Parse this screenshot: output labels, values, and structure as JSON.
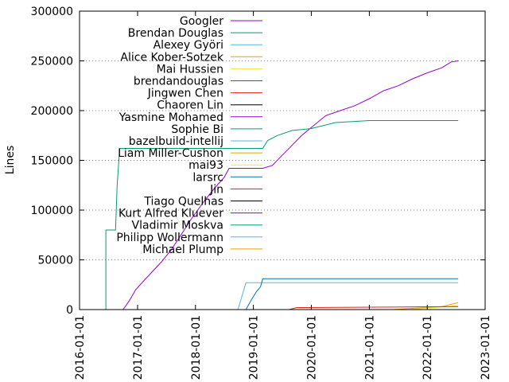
{
  "chart_data": {
    "type": "line",
    "title": "",
    "xlabel": "",
    "ylabel": "Lines",
    "x_axis": {
      "type": "date",
      "range": [
        "2016-01-01",
        "2023-01-01"
      ],
      "ticks": [
        "2016-01-01",
        "2017-01-01",
        "2018-01-01",
        "2019-01-01",
        "2020-01-01",
        "2021-01-01",
        "2022-01-01",
        "2023-01-01"
      ]
    },
    "y_axis": {
      "range": [
        0,
        300000
      ],
      "ticks": [
        0,
        50000,
        100000,
        150000,
        200000,
        250000,
        300000
      ],
      "tick_labels": [
        "0",
        "50000",
        "100000",
        "150000",
        "200000",
        "250000",
        "300000"
      ],
      "grid": true
    },
    "legend_position": "top-left",
    "series": [
      {
        "name": "Googler",
        "color": "#9400d3",
        "points": [
          [
            "2016-10-01",
            0
          ],
          [
            "2016-10-20",
            4000
          ],
          [
            "2016-11-10",
            9000
          ],
          [
            "2016-11-25",
            13000
          ],
          [
            "2016-12-20",
            20000
          ],
          [
            "2017-02-15",
            30000
          ],
          [
            "2017-04-15",
            40000
          ],
          [
            "2017-06-01",
            48000
          ],
          [
            "2017-08-01",
            60000
          ],
          [
            "2017-10-01",
            75000
          ],
          [
            "2017-12-01",
            90000
          ],
          [
            "2018-01-15",
            100000
          ],
          [
            "2018-03-01",
            110000
          ],
          [
            "2018-05-01",
            122000
          ],
          [
            "2018-07-01",
            133000
          ],
          [
            "2018-08-01",
            142000
          ],
          [
            "2019-01-01",
            142000
          ],
          [
            "2019-03-01",
            142000
          ],
          [
            "2019-05-01",
            145000
          ],
          [
            "2019-07-01",
            155000
          ],
          [
            "2019-09-01",
            165000
          ],
          [
            "2019-11-01",
            175000
          ],
          [
            "2020-01-01",
            183000
          ],
          [
            "2020-04-01",
            195000
          ],
          [
            "2020-07-01",
            200000
          ],
          [
            "2020-10-01",
            205000
          ],
          [
            "2021-01-01",
            212000
          ],
          [
            "2021-04-01",
            220000
          ],
          [
            "2021-07-01",
            225000
          ],
          [
            "2021-10-01",
            232000
          ],
          [
            "2022-01-01",
            238000
          ],
          [
            "2022-04-01",
            243000
          ],
          [
            "2022-06-01",
            249000
          ],
          [
            "2022-07-15",
            250000
          ]
        ]
      },
      {
        "name": "Brendan Douglas",
        "color": "#009e73",
        "points": [
          [
            "2016-06-15",
            0
          ],
          [
            "2016-06-15",
            80000
          ],
          [
            "2016-08-15",
            80000
          ],
          [
            "2016-08-25",
            125000
          ],
          [
            "2016-09-10",
            162000
          ],
          [
            "2017-06-01",
            162000
          ],
          [
            "2018-06-01",
            162000
          ],
          [
            "2019-03-01",
            162000
          ],
          [
            "2019-04-01",
            170000
          ],
          [
            "2019-06-01",
            175000
          ],
          [
            "2019-09-01",
            180000
          ],
          [
            "2020-01-01",
            182000
          ],
          [
            "2020-06-01",
            188000
          ],
          [
            "2021-01-01",
            190000
          ],
          [
            "2022-07-15",
            190000
          ]
        ]
      },
      {
        "name": "Alexey Györi",
        "color": "#56b4e9",
        "points": [
          [
            "2018-09-25",
            0
          ],
          [
            "2018-10-20",
            13000
          ],
          [
            "2018-11-15",
            27000
          ],
          [
            "2022-07-15",
            27000
          ]
        ]
      },
      {
        "name": "Alice Kober-Sotzek",
        "color": "#e69f00",
        "points": [
          [
            "2021-06-01",
            0
          ],
          [
            "2021-09-01",
            1000
          ],
          [
            "2022-01-01",
            2000
          ],
          [
            "2022-04-01",
            3000
          ],
          [
            "2022-07-15",
            7000
          ]
        ]
      },
      {
        "name": "Mai Hussien",
        "color": "#f0e442",
        "points": [
          [
            "2021-09-01",
            0
          ],
          [
            "2022-01-01",
            1500
          ],
          [
            "2022-07-15",
            4000
          ]
        ]
      },
      {
        "name": "brendandouglas",
        "color": "#0072b2",
        "points": [
          [
            "2018-11-15",
            0
          ],
          [
            "2018-12-20",
            10000
          ],
          [
            "2019-01-20",
            18000
          ],
          [
            "2019-02-15",
            23000
          ],
          [
            "2019-03-01",
            31000
          ],
          [
            "2022-07-15",
            31000
          ]
        ]
      },
      {
        "name": "Jingwen Chen",
        "color": "#e51e10",
        "points": [
          [
            "2019-08-15",
            0
          ],
          [
            "2019-10-01",
            2000
          ],
          [
            "2022-07-15",
            3000
          ]
        ]
      },
      {
        "name": "Chaoren Lin",
        "color": "#000000",
        "points": []
      },
      {
        "name": "Yasmine Mohamed",
        "color": "#9400d3",
        "points": []
      },
      {
        "name": "Sophie Bi",
        "color": "#009e73",
        "points": []
      },
      {
        "name": "bazelbuild-intellij",
        "color": "#56b4e9",
        "points": []
      },
      {
        "name": "Liam Miller-Cushon",
        "color": "#e69f00",
        "points": []
      },
      {
        "name": "mai93",
        "color": "#f0e442",
        "points": []
      },
      {
        "name": "larsrc",
        "color": "#0072b2",
        "points": []
      },
      {
        "name": "Jin",
        "color": "#e51e10",
        "points": []
      },
      {
        "name": "Tiago Quelhas",
        "color": "#000000",
        "points": []
      },
      {
        "name": "Kurt Alfred Kluever",
        "color": "#9400d3",
        "points": []
      },
      {
        "name": "Vladimir Moskva",
        "color": "#009e73",
        "points": []
      },
      {
        "name": "Philipp Wollermann",
        "color": "#56b4e9",
        "points": []
      },
      {
        "name": "Michael Plump",
        "color": "#e69f00",
        "points": []
      }
    ]
  }
}
